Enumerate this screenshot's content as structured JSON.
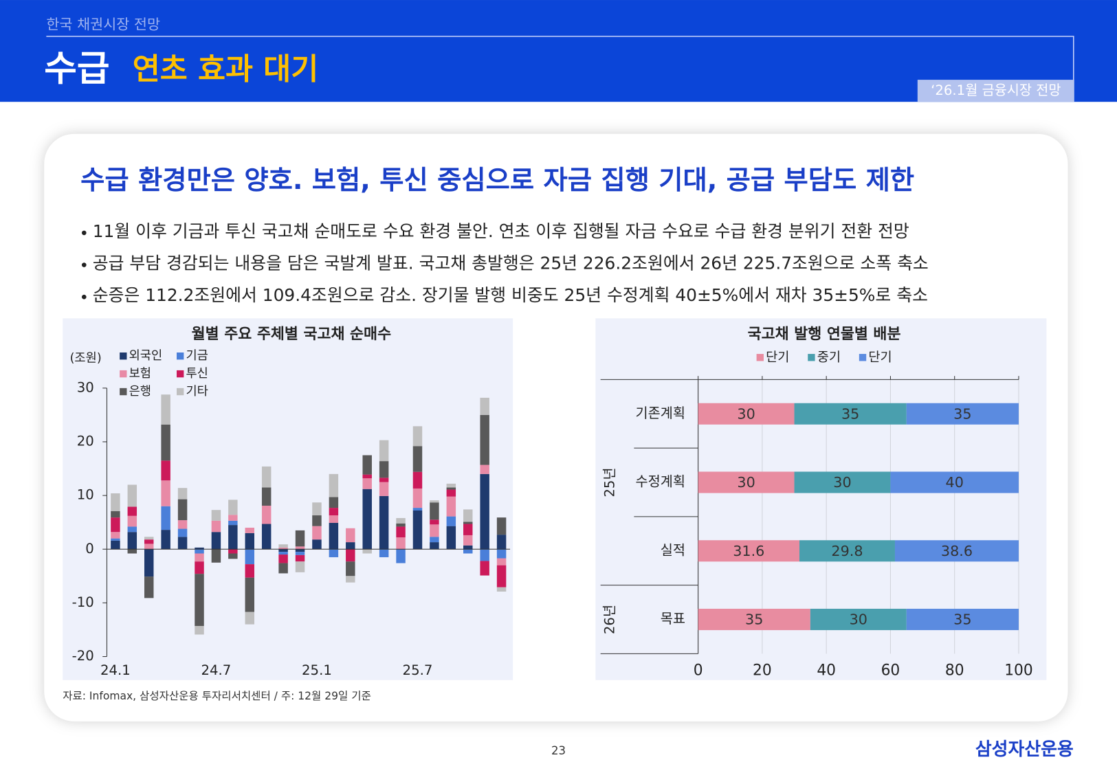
{
  "header": {
    "section": "한국 채권시장 전망",
    "title": "수급",
    "subtitle": "연초 효과 대기",
    "report": "‘26.1월 금융시장 전망"
  },
  "headline": "수급 환경만은 양호. 보험, 투신 중심으로 자금 집행 기대, 공급 부담도 제한",
  "bullets": [
    "11월 이후 기금과 투신 국고채 순매도로 수요 환경 불안. 연초 이후 집행될 자금 수요로 수급 환경 분위기 전환 전망",
    "공급 부담 경감되는 내용을 담은 국발계 발표. 국고채 총발행은 25년 226.2조원에서 26년 225.7조원으로 소폭 축소",
    "순증은 112.2조원에서 109.4조원으로 감소. 장기물 발행 비중도 25년 수정계획 40±5%에서 재차 35±5%로 축소"
  ],
  "chart_data": [
    {
      "type": "bar",
      "stacked": true,
      "title": "월별 주요 주체별 국고채 순매수",
      "y_label": "(조원)",
      "categories": [
        "24.1",
        null,
        null,
        null,
        null,
        null,
        "24.7",
        null,
        null,
        null,
        null,
        null,
        "25.1",
        null,
        null,
        null,
        null,
        null,
        "25.7",
        null,
        null,
        null,
        null,
        null
      ],
      "series": [
        {
          "name": "외국인",
          "color": "#1f3a6e",
          "values": [
            1.6,
            3.2,
            -5.1,
            3.6,
            2.3,
            0.3,
            3.2,
            4.5,
            3.0,
            4.7,
            -0.5,
            -0.5,
            1.8,
            4.9,
            1.3,
            11.2,
            9.9,
            0,
            7.2,
            1.3,
            4.3,
            0.7,
            14.0,
            2.7
          ]
        },
        {
          "name": "기금",
          "color": "#4a7fd9",
          "values": [
            0.4,
            1.0,
            0,
            4.4,
            1.5,
            -0.8,
            0,
            0.8,
            -2.8,
            0,
            -0.5,
            -0.6,
            0,
            -1.5,
            0,
            0,
            -1.5,
            -2.6,
            0.5,
            1.0,
            1.8,
            -0.8,
            -2.2,
            -1.7
          ]
        },
        {
          "name": "보험",
          "color": "#e88aa6",
          "values": [
            1.2,
            2.0,
            1.0,
            4.8,
            1.6,
            -1.5,
            2.1,
            1.1,
            1.0,
            3.4,
            0.3,
            0.5,
            2.5,
            1.4,
            2.6,
            2.0,
            2.6,
            2.2,
            3.6,
            2.3,
            3.7,
            1.9,
            1.7,
            -1.3
          ]
        },
        {
          "name": "투신",
          "color": "#cc1a5a",
          "values": [
            2.7,
            1.7,
            0.8,
            3.7,
            0,
            -2.3,
            0,
            -0.8,
            -2.5,
            0,
            -1.6,
            -1.2,
            0,
            1.4,
            -2.3,
            0.7,
            0.8,
            2.0,
            3.1,
            0.9,
            1.3,
            2.1,
            -2.7,
            -4.1
          ]
        },
        {
          "name": "은행",
          "color": "#595959",
          "values": [
            1.2,
            -0.8,
            -4.0,
            6.7,
            3.9,
            -9.7,
            -2.5,
            -1.0,
            -6.4,
            3.4,
            -1.9,
            3.0,
            2.0,
            2.0,
            -2.7,
            3.6,
            3.1,
            0.6,
            4.8,
            3.2,
            0.4,
            0.4,
            9.3,
            3.2
          ]
        },
        {
          "name": "기타",
          "color": "#bfbfbf",
          "values": [
            3.3,
            4.1,
            0.5,
            5.6,
            2.1,
            -1.6,
            2.0,
            2.8,
            -2.3,
            3.9,
            0.6,
            -2.0,
            2.4,
            4.3,
            -1.2,
            -0.8,
            3.9,
            1.0,
            3.7,
            0.4,
            0.7,
            2.3,
            3.2,
            -0.8
          ]
        }
      ],
      "ylim": [
        -20,
        30
      ],
      "yticks": [
        -20,
        -10,
        0,
        10,
        20,
        30
      ]
    },
    {
      "type": "bar",
      "orientation": "horizontal",
      "stacked": true,
      "title": "국고채 발행 연물별 배분",
      "categories": [
        "기존계획",
        "수정계획",
        "실적",
        "목표"
      ],
      "groups": [
        "25년",
        "26년"
      ],
      "series": [
        {
          "name": "단기",
          "color": "#e88ca0",
          "values": [
            30,
            30,
            31.6,
            35
          ]
        },
        {
          "name": "중기",
          "color": "#4a9fae",
          "values": [
            35,
            30,
            29.8,
            30
          ]
        },
        {
          "name": "단기",
          "color": "#5b8be0",
          "values": [
            35,
            40,
            38.6,
            35
          ]
        }
      ],
      "xlim": [
        0,
        100
      ],
      "xticks": [
        0,
        20,
        40,
        60,
        80,
        100
      ],
      "grid": true
    }
  ],
  "source": "자료: Infomax, 삼성자산운용 투자리서치센터 / 주: 12월 29일 기준",
  "page_number": "23",
  "logo": "삼성자산운용"
}
